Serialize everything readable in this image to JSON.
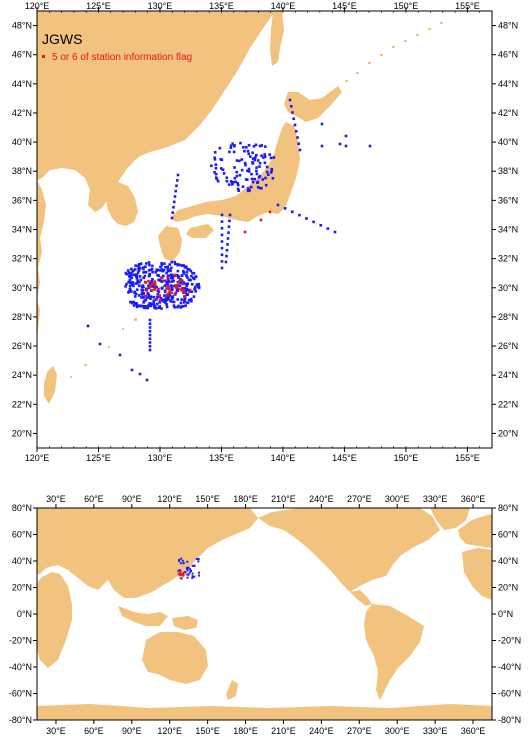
{
  "regional_map": {
    "title": "JGWS",
    "legend_label": "5 or 6 of station information flag",
    "legend_color": "#e41a1c",
    "station_color": "#1a1aff",
    "land_color": "#f2c27f",
    "lon_range": [
      120,
      157
    ],
    "lat_range": [
      19,
      49
    ],
    "lon_ticks": [
      "120°E",
      "125°E",
      "130°E",
      "135°E",
      "140°E",
      "145°E",
      "150°E",
      "155°E"
    ],
    "lat_ticks": [
      "20°N",
      "22°N",
      "24°N",
      "26°N",
      "28°N",
      "30°N",
      "32°N",
      "34°N",
      "36°N",
      "38°N",
      "40°N",
      "42°N",
      "44°N",
      "46°N",
      "48°N"
    ]
  },
  "global_map": {
    "lon_range": [
      15,
      375
    ],
    "lat_range": [
      -80,
      80
    ],
    "lon_ticks": [
      "30°E",
      "60°E",
      "90°E",
      "120°E",
      "150°E",
      "180°E",
      "210°E",
      "240°E",
      "270°E",
      "300°E",
      "330°E",
      "360°E"
    ],
    "lat_ticks": [
      "80°N",
      "60°N",
      "40°N",
      "20°N",
      "0°N",
      "-20°N",
      "-40°N",
      "-60°N",
      "-80°N"
    ]
  }
}
